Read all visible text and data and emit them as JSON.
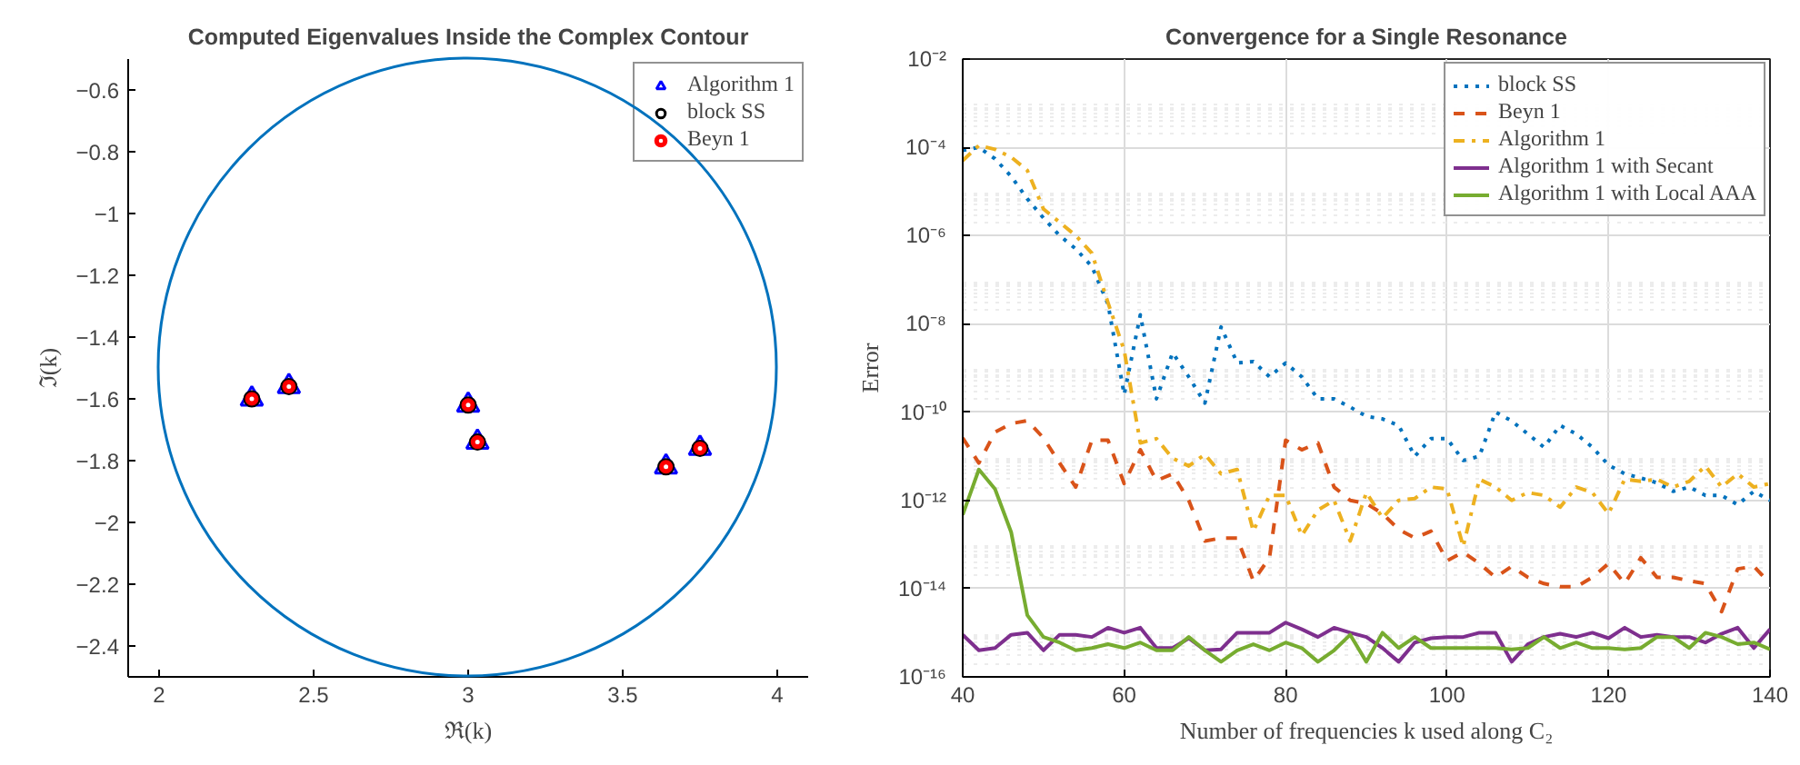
{
  "chart_data": [
    {
      "type": "scatter",
      "title": "Computed Eigenvalues Inside the Complex Contour",
      "xlabel": "ℜ(k)",
      "ylabel": "ℑ(k)",
      "xlim": [
        1.9,
        4.1
      ],
      "ylim": [
        -2.5,
        -0.5
      ],
      "xticks": [
        2,
        2.5,
        3,
        3.5,
        4
      ],
      "yticks": [
        -2.4,
        -2.2,
        -2,
        -1.8,
        -1.6,
        -1.4,
        -1.2,
        -1,
        -0.8,
        -0.6
      ],
      "grid": false,
      "legend": "top right",
      "series": [
        {
          "name": "Algorithm 1",
          "color": "#0000ff",
          "marker": "triangle",
          "x": [
            2.3,
            2.42,
            3.0,
            3.03,
            3.64,
            3.75
          ],
          "values": [
            -1.6,
            -1.56,
            -1.62,
            -1.74,
            -1.82,
            -1.76
          ]
        },
        {
          "name": "block SS",
          "color": "#000000",
          "marker": "circle",
          "x": [
            2.3,
            2.42,
            3.0,
            3.03,
            3.64,
            3.75
          ],
          "values": [
            -1.6,
            -1.56,
            -1.62,
            -1.74,
            -1.82,
            -1.76
          ]
        },
        {
          "name": "Beyn 1",
          "color": "#ff0000",
          "marker": "circle",
          "x": [
            2.3,
            2.42,
            3.0,
            3.03,
            3.64,
            3.75
          ],
          "values": [
            -1.6,
            -1.56,
            -1.62,
            -1.74,
            -1.82,
            -1.76
          ]
        }
      ]
    },
    {
      "type": "line",
      "title": "Convergence for a Single Resonance",
      "xlabel": "Number of frequencies k used along C₂",
      "ylabel": "Error",
      "log": "y",
      "xlim": [
        40,
        140
      ],
      "ylim": [
        1e-16,
        0.01
      ],
      "xticks": [
        40,
        60,
        80,
        100,
        120,
        140
      ],
      "yticks": [
        {
          "value": 1e-16,
          "label": "10⁻¹⁶"
        },
        {
          "value": 1e-14,
          "label": "10⁻¹⁴"
        },
        {
          "value": 1e-12,
          "label": "10⁻¹²"
        },
        {
          "value": 1e-10,
          "label": "10⁻¹⁰"
        },
        {
          "value": 1e-08,
          "label": "10⁻⁸"
        },
        {
          "value": 1e-06,
          "label": "10⁻⁶"
        },
        {
          "value": 0.0001,
          "label": "10⁻⁴"
        },
        {
          "value": 0.01,
          "label": "10⁻²"
        }
      ],
      "grid": true,
      "legend": "top right",
      "x": [
        40,
        42,
        44,
        46,
        48,
        50,
        52,
        54,
        56,
        58,
        60,
        62,
        64,
        66,
        68,
        70,
        72,
        74,
        76,
        78,
        80,
        82,
        84,
        86,
        88,
        90,
        92,
        94,
        96,
        98,
        100,
        102,
        104,
        106,
        108,
        110,
        112,
        114,
        116,
        118,
        120,
        122,
        124,
        126,
        128,
        130,
        132,
        134,
        136,
        138,
        140
      ],
      "series": [
        {
          "name": "block SS",
          "color": "#0072bd",
          "line_style": "dotted",
          "values": [
            8.5e-05,
            0.0001,
            5.5e-05,
            2.2e-05,
            6.8e-06,
            2.5e-06,
            1e-06,
            5e-07,
            2e-07,
            2.8e-08,
            2.5e-10,
            1.6e-08,
            2e-10,
            2.2e-09,
            6.3e-10,
            1.6e-10,
            8.5e-09,
            1.3e-09,
            1.4e-09,
            6.3e-10,
            1.3e-09,
            6.3e-10,
            2e-10,
            2e-10,
            1.3e-10,
            8e-11,
            7e-11,
            5e-11,
            1e-11,
            2.5e-11,
            2.5e-11,
            8e-12,
            1e-11,
            1e-10,
            6.3e-11,
            3.2e-11,
            1.6e-11,
            5e-11,
            3.2e-11,
            1.6e-11,
            6.3e-12,
            4e-12,
            3.2e-12,
            2.5e-12,
            1.6e-12,
            2e-12,
            1.3e-12,
            1.3e-12,
            8e-13,
            1.6e-12,
            1e-12
          ]
        },
        {
          "name": "Beyn 1",
          "color": "#d95319",
          "line_style": "dashed",
          "values": [
            2.6e-11,
            7e-12,
            3.5e-11,
            5.5e-11,
            6.4e-11,
            2.6e-11,
            7e-12,
            2e-12,
            2.3e-11,
            2.3e-11,
            2.4e-12,
            1.4e-11,
            2.8e-12,
            4e-12,
            1e-12,
            1.2e-13,
            1.4e-13,
            1.4e-13,
            1.5e-14,
            5e-14,
            2.3e-11,
            1.4e-11,
            2e-11,
            2e-12,
            1e-12,
            8.5e-13,
            5e-13,
            2.2e-13,
            1.4e-13,
            2e-13,
            4.3e-14,
            6.7e-14,
            3.7e-14,
            1.8e-14,
            3.2e-14,
            1.8e-14,
            1.3e-14,
            1.1e-14,
            1.1e-14,
            1.8e-14,
            3.7e-14,
            1.3e-14,
            5e-14,
            1.8e-14,
            1.8e-14,
            1.5e-14,
            1.3e-14,
            3e-15,
            2.8e-14,
            3.2e-14,
            1.3e-14
          ]
        },
        {
          "name": "Algorithm 1",
          "color": "#edb120",
          "line_style": "dashdot",
          "values": [
            5e-05,
            0.00011,
            9e-05,
            6e-05,
            3e-05,
            4e-06,
            2e-06,
            1e-06,
            4e-07,
            3e-08,
            2.5e-09,
            2e-11,
            2.5e-11,
            9e-12,
            6e-12,
            1.1e-11,
            4e-12,
            5e-12,
            2e-13,
            1.3e-12,
            1.3e-12,
            1.6e-13,
            6e-13,
            1e-12,
            1.2e-13,
            1.5e-12,
            4e-13,
            1e-12,
            1.1e-12,
            2e-12,
            1.8e-12,
            9e-14,
            3e-12,
            2e-12,
            1e-12,
            1.5e-12,
            1.3e-12,
            7e-13,
            2e-12,
            1.5e-12,
            5e-13,
            3e-12,
            2.7e-12,
            3e-12,
            2e-12,
            2.7e-12,
            6e-12,
            2e-12,
            4e-12,
            2e-12,
            2.4e-12
          ]
        },
        {
          "name": "Algorithm 1 with Secant",
          "color": "#7e2f8e",
          "line_style": "solid",
          "values": [
            9e-16,
            4e-16,
            4.5e-16,
            9e-16,
            1e-15,
            4e-16,
            9e-16,
            9e-16,
            8e-16,
            1.3e-15,
            1e-15,
            1.3e-15,
            4.5e-16,
            4.5e-16,
            7.5e-16,
            4e-16,
            4.2e-16,
            1e-15,
            1e-15,
            1e-15,
            1.7e-15,
            1.2e-15,
            8e-16,
            1.3e-15,
            1e-15,
            8e-16,
            4.5e-16,
            2.2e-16,
            6e-16,
            7.5e-16,
            8e-16,
            8e-16,
            1e-15,
            1e-15,
            2.2e-16,
            5.5e-16,
            8e-16,
            9.5e-16,
            8e-16,
            1e-15,
            7.5e-16,
            1.3e-15,
            8e-16,
            9e-16,
            8e-16,
            8e-16,
            6e-16,
            9.5e-16,
            1.3e-15,
            4.5e-16,
            1.2e-15
          ]
        },
        {
          "name": "Algorithm 1 with Local AAA",
          "color": "#77ac30",
          "line_style": "solid",
          "values": [
            4.7e-13,
            5e-12,
            1.8e-12,
            1.9e-13,
            2.5e-15,
            8e-16,
            6e-16,
            4e-16,
            4.5e-16,
            5.5e-16,
            4.5e-16,
            6e-16,
            4e-16,
            4e-16,
            8e-16,
            4e-16,
            2.2e-16,
            4e-16,
            5.5e-16,
            4e-16,
            6e-16,
            4.5e-16,
            2.2e-16,
            4e-16,
            9e-16,
            2.2e-16,
            1e-15,
            4.5e-16,
            8e-16,
            4.5e-16,
            4.5e-16,
            4.5e-16,
            4.5e-16,
            4.5e-16,
            4.2e-16,
            4.5e-16,
            8e-16,
            4.5e-16,
            6e-16,
            4.5e-16,
            4.5e-16,
            4.2e-16,
            4.5e-16,
            8e-16,
            8e-16,
            4.5e-16,
            1e-15,
            8e-16,
            5.5e-16,
            6e-16,
            4.2e-16
          ]
        }
      ]
    }
  ]
}
